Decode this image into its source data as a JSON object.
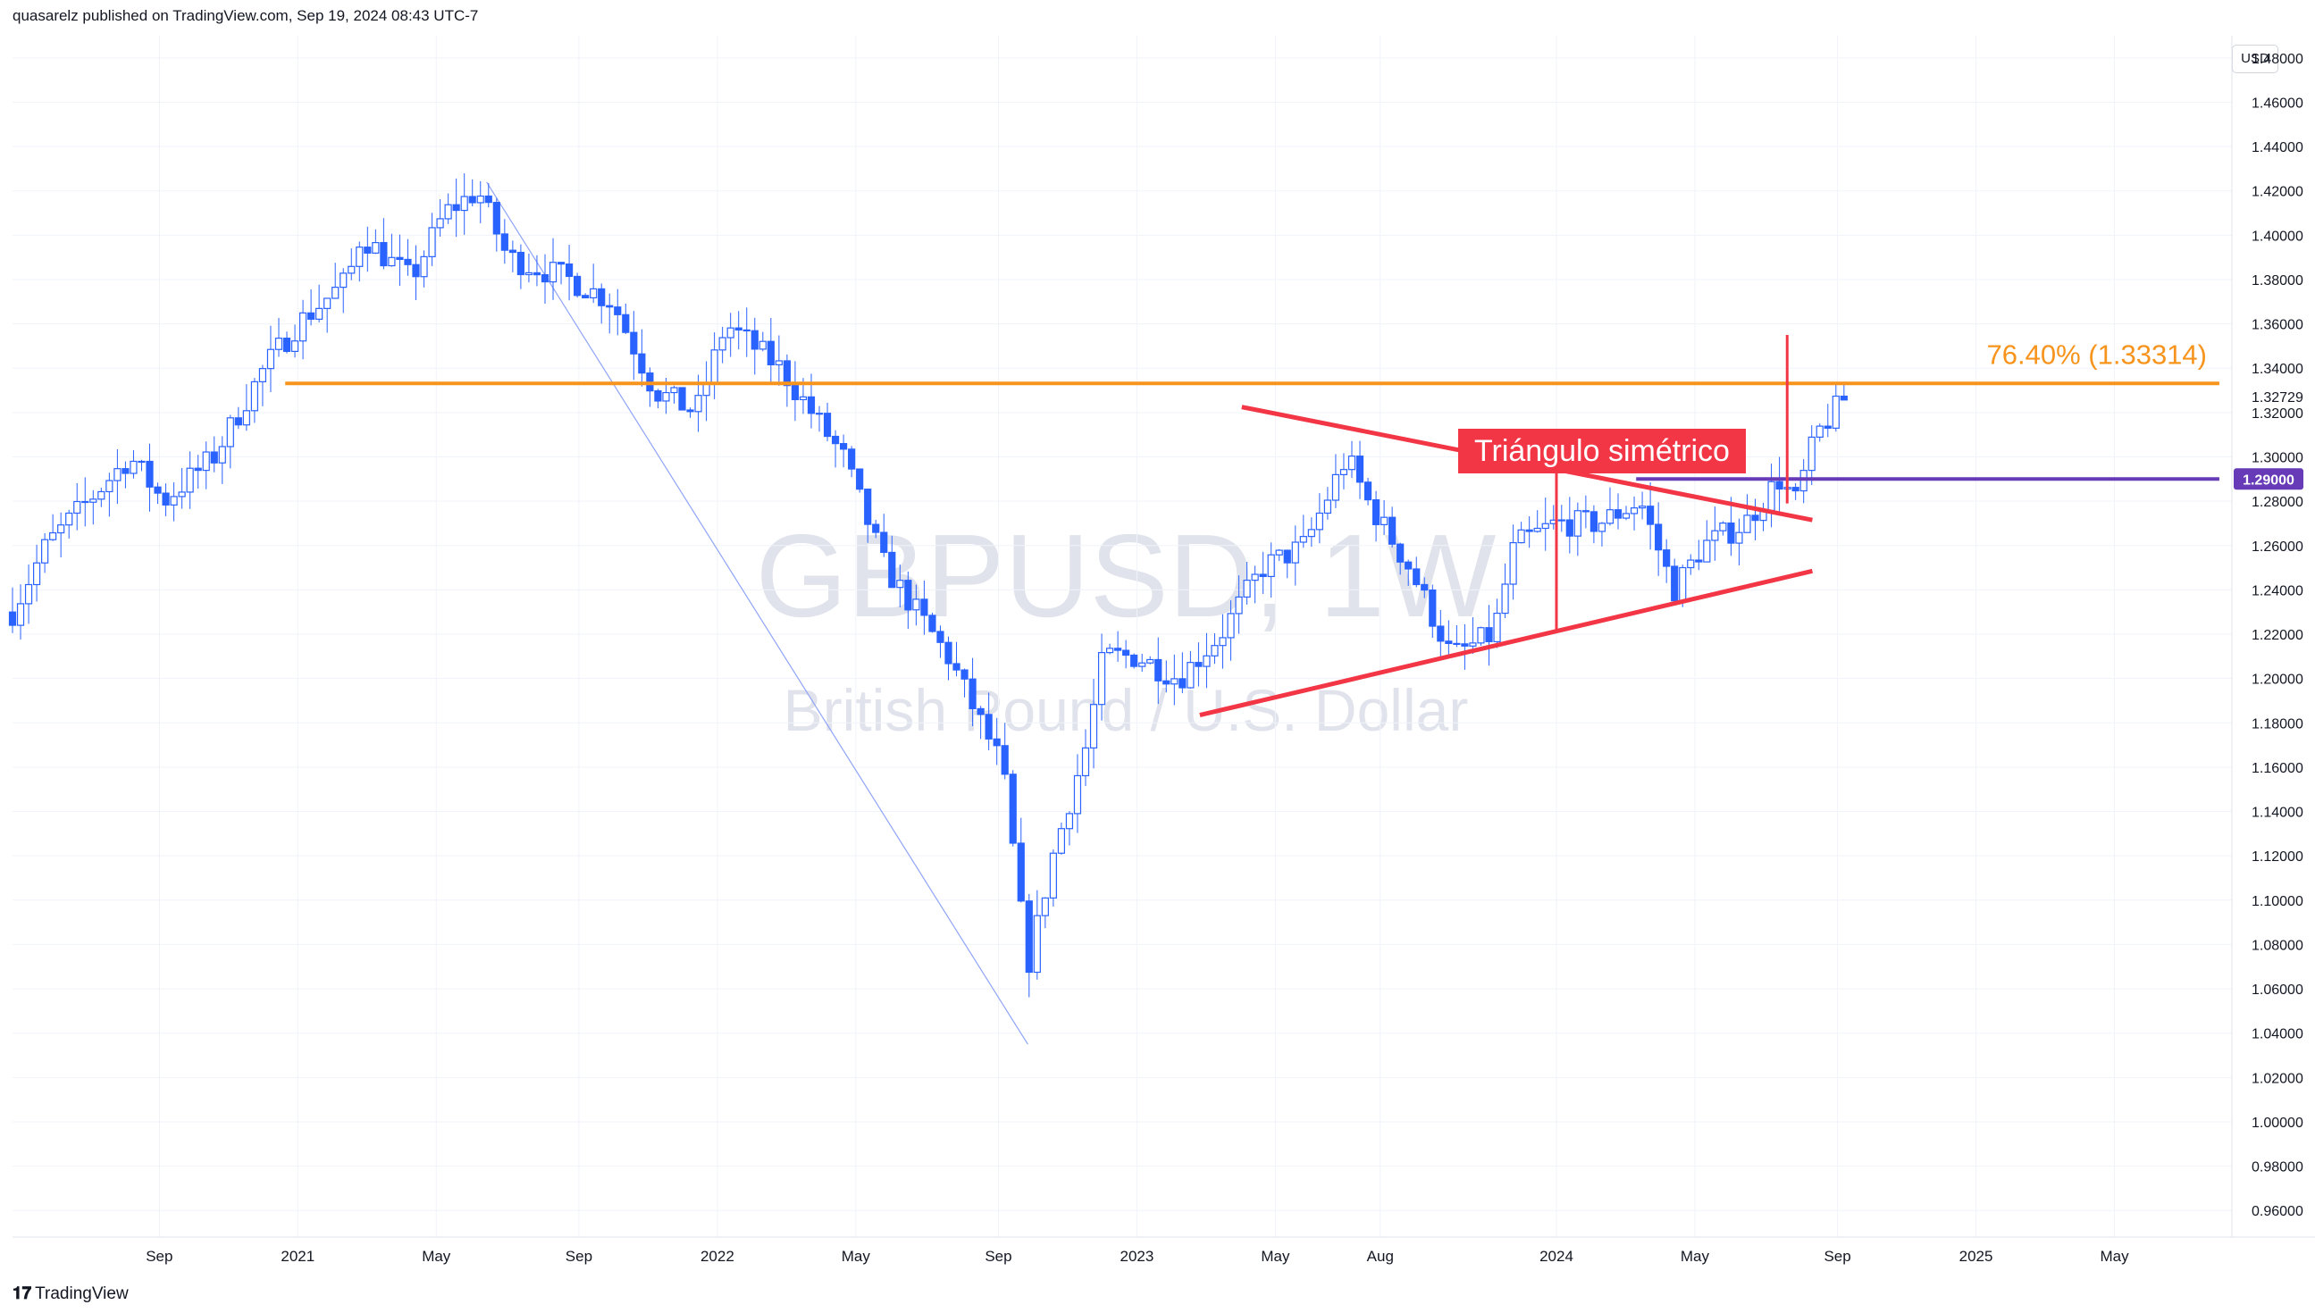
{
  "header": {
    "published_by": "quasarelz published on TradingView.com, Sep 19, 2024 08:43 UTC-7"
  },
  "footer": {
    "logo": "𝟏𝟕",
    "brand": "TradingView"
  },
  "currency_label": "USD",
  "colors": {
    "up": "#2962ff",
    "down": "#2962ff",
    "fib": "#f7941d",
    "triangle": "#f23645",
    "support": "#673ab7",
    "watermark": "#d9dbe0",
    "zigzag": "#2962ff"
  },
  "chart_data": {
    "type": "candlestick",
    "symbol_watermark": "GBPUSD, 1W",
    "description_watermark": "British Pound / U.S. Dollar",
    "y_ticks": [
      "1.48000",
      "1.46000",
      "1.44000",
      "1.42000",
      "1.40000",
      "1.38000",
      "1.36000",
      "1.34000",
      "1.32000",
      "1.30000",
      "1.28000",
      "1.26000",
      "1.24000",
      "1.22000",
      "1.20000",
      "1.18000",
      "1.16000",
      "1.14000",
      "1.12000",
      "1.10000",
      "1.08000",
      "1.06000",
      "1.04000",
      "1.02000",
      "1.00000",
      "0.98000",
      "0.96000"
    ],
    "ylim": [
      0.948,
      1.49
    ],
    "x_ticks": [
      {
        "label": "Sep",
        "t": 2020.67
      },
      {
        "label": "2021",
        "t": 2021.0
      },
      {
        "label": "May",
        "t": 2021.33
      },
      {
        "label": "Sep",
        "t": 2021.67
      },
      {
        "label": "2022",
        "t": 2022.0
      },
      {
        "label": "May",
        "t": 2022.33
      },
      {
        "label": "Sep",
        "t": 2022.67
      },
      {
        "label": "2023",
        "t": 2023.0
      },
      {
        "label": "May",
        "t": 2023.33
      },
      {
        "label": "Aug",
        "t": 2023.58
      },
      {
        "label": "2024",
        "t": 2024.0
      },
      {
        "label": "May",
        "t": 2024.33
      },
      {
        "label": "Sep",
        "t": 2024.67
      },
      {
        "label": "2025",
        "t": 2025.0
      },
      {
        "label": "May",
        "t": 2025.33
      }
    ],
    "xlim": [
      2020.32,
      2025.61
    ],
    "current_price_label": "1.32729",
    "current_price": 1.32729,
    "support_level": 1.29,
    "support_label": "1.29000",
    "fib_level": 1.33314,
    "fib_label": "76.40% (1.33314)",
    "annotation": "Triángulo simétrico",
    "anchors": [
      {
        "t": 2020.32,
        "p": 1.23
      },
      {
        "t": 2020.4,
        "p": 1.26
      },
      {
        "t": 2020.5,
        "p": 1.28
      },
      {
        "t": 2020.6,
        "p": 1.3
      },
      {
        "t": 2020.68,
        "p": 1.28
      },
      {
        "t": 2020.8,
        "p": 1.3
      },
      {
        "t": 2020.92,
        "p": 1.34
      },
      {
        "t": 2021.0,
        "p": 1.36
      },
      {
        "t": 2021.12,
        "p": 1.38
      },
      {
        "t": 2021.15,
        "p": 1.4
      },
      {
        "t": 2021.27,
        "p": 1.38
      },
      {
        "t": 2021.35,
        "p": 1.41
      },
      {
        "t": 2021.43,
        "p": 1.42
      },
      {
        "t": 2021.5,
        "p": 1.39
      },
      {
        "t": 2021.65,
        "p": 1.38
      },
      {
        "t": 2021.75,
        "p": 1.37
      },
      {
        "t": 2021.85,
        "p": 1.33
      },
      {
        "t": 2021.95,
        "p": 1.32
      },
      {
        "t": 2022.02,
        "p": 1.36
      },
      {
        "t": 2022.15,
        "p": 1.34
      },
      {
        "t": 2022.3,
        "p": 1.3
      },
      {
        "t": 2022.4,
        "p": 1.25
      },
      {
        "t": 2022.55,
        "p": 1.21
      },
      {
        "t": 2022.68,
        "p": 1.16
      },
      {
        "t": 2022.74,
        "p": 1.07
      },
      {
        "t": 2022.8,
        "p": 1.12
      },
      {
        "t": 2022.88,
        "p": 1.17
      },
      {
        "t": 2022.92,
        "p": 1.21
      },
      {
        "t": 2023.0,
        "p": 1.21
      },
      {
        "t": 2023.1,
        "p": 1.2
      },
      {
        "t": 2023.2,
        "p": 1.22
      },
      {
        "t": 2023.3,
        "p": 1.25
      },
      {
        "t": 2023.4,
        "p": 1.26
      },
      {
        "t": 2023.5,
        "p": 1.3
      },
      {
        "t": 2023.55,
        "p": 1.28
      },
      {
        "t": 2023.65,
        "p": 1.25
      },
      {
        "t": 2023.75,
        "p": 1.21
      },
      {
        "t": 2023.85,
        "p": 1.22
      },
      {
        "t": 2023.9,
        "p": 1.26
      },
      {
        "t": 2024.0,
        "p": 1.27
      },
      {
        "t": 2024.1,
        "p": 1.27
      },
      {
        "t": 2024.2,
        "p": 1.28
      },
      {
        "t": 2024.28,
        "p": 1.24
      },
      {
        "t": 2024.35,
        "p": 1.26
      },
      {
        "t": 2024.45,
        "p": 1.27
      },
      {
        "t": 2024.53,
        "p": 1.29
      },
      {
        "t": 2024.57,
        "p": 1.28
      },
      {
        "t": 2024.62,
        "p": 1.31
      },
      {
        "t": 2024.66,
        "p": 1.32
      },
      {
        "t": 2024.69,
        "p": 1.327
      }
    ],
    "drawings": {
      "fib_line": {
        "t1": 2020.97,
        "t2": 2025.58,
        "p": 1.33314
      },
      "support_line": {
        "t1": 2024.19,
        "t2": 2025.58,
        "p": 1.29
      },
      "triangle_upper": {
        "t1": 2023.25,
        "p1": 1.3225,
        "t2": 2024.61,
        "p2": 1.2715
      },
      "triangle_lower": {
        "t1": 2023.15,
        "p1": 1.1835,
        "t2": 2024.61,
        "p2": 1.2485
      },
      "measure_left": {
        "t": 2024.0,
        "p1": 1.297,
        "p2": 1.221
      },
      "measure_right": {
        "t": 2024.55,
        "p1": 1.355,
        "p2": 1.279
      },
      "zigzag": [
        {
          "t": 2021.45,
          "p": 1.424
        },
        {
          "t": 2022.74,
          "p": 1.035
        }
      ]
    }
  }
}
